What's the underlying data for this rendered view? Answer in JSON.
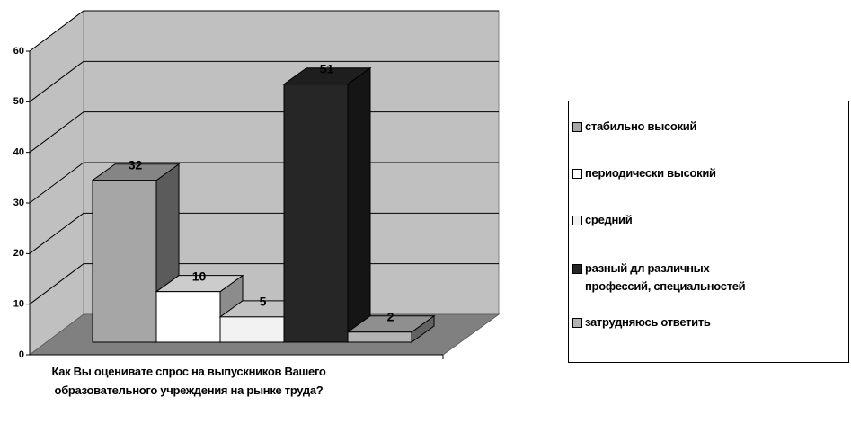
{
  "chart_data": {
    "type": "bar3d",
    "categories": [
      "Как Вы оценивате спрос на выпускников Вашего образовательного учреждения на рынке труда?"
    ],
    "series": [
      {
        "name": "стабильно высокий",
        "color": "#a6a6a6",
        "values": [
          32
        ]
      },
      {
        "name": "периодически высокий",
        "color": "#ffffff",
        "values": [
          10
        ]
      },
      {
        "name": "средний",
        "color": "#f2f2f2",
        "values": [
          5
        ]
      },
      {
        "name": "разный дл различных профессий, специальностей",
        "color": "#262626",
        "values": [
          51
        ]
      },
      {
        "name": "затрудняюсь ответить",
        "color": "#b3b3b3",
        "values": [
          2
        ]
      }
    ],
    "ylim": [
      0,
      60
    ],
    "yticks": [
      0,
      10,
      20,
      30,
      40,
      50,
      60
    ],
    "grid": true,
    "legend": "right"
  }
}
